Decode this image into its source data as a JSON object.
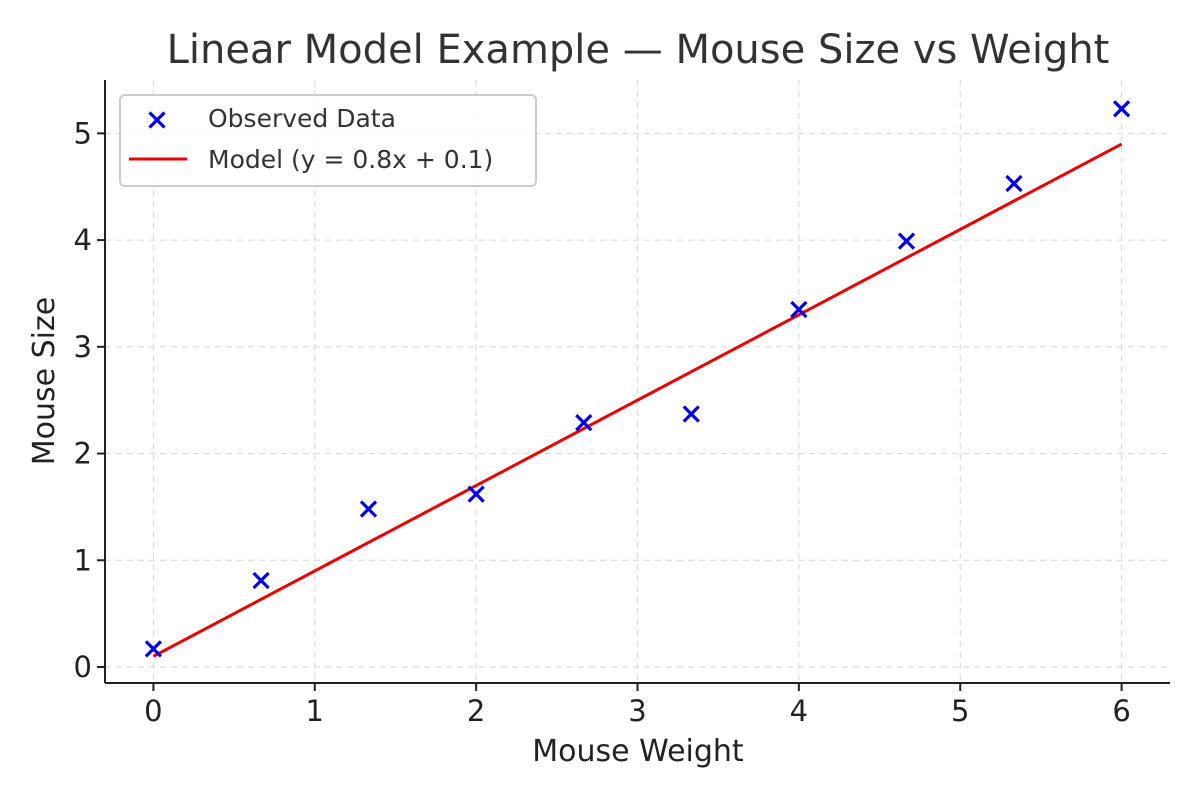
{
  "chart_data": {
    "type": "scatter",
    "title": "Linear Model Example — Mouse Size vs Weight",
    "xlabel": "Mouse Weight",
    "ylabel": "Mouse Size",
    "xlim": [
      -0.3,
      6.3
    ],
    "ylim": [
      -0.15,
      5.5
    ],
    "xticks": [
      0,
      1,
      2,
      3,
      4,
      5,
      6
    ],
    "yticks": [
      0,
      1,
      2,
      3,
      4,
      5
    ],
    "grid": true,
    "legend_position": "top-left",
    "series": [
      {
        "name": "Observed Data",
        "kind": "scatter",
        "marker": "x",
        "color": "#0000ee",
        "x": [
          0,
          0.667,
          1.333,
          2.0,
          2.667,
          3.333,
          4.0,
          4.667,
          5.333,
          6.0
        ],
        "y": [
          0.17,
          0.81,
          1.48,
          1.62,
          2.29,
          2.37,
          3.35,
          3.99,
          4.53,
          5.23
        ]
      },
      {
        "name": "Model (y = 0.8x + 0.1)",
        "kind": "line",
        "color": "#ee0000",
        "x": [
          0,
          6
        ],
        "y": [
          0.1,
          4.9
        ]
      }
    ]
  }
}
